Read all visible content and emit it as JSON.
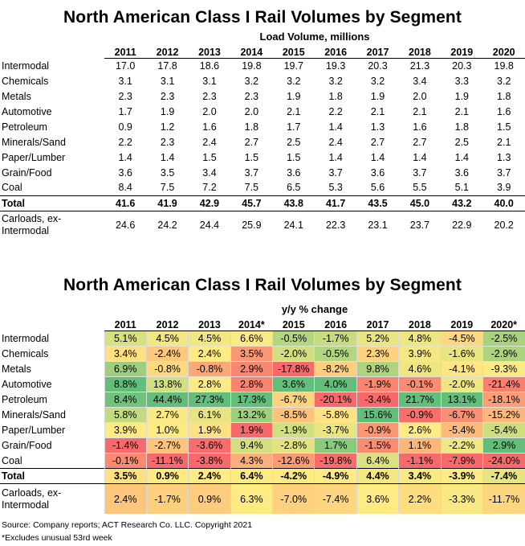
{
  "volume_section": {
    "title": "North American Class I Rail Volumes by Segment",
    "subtitle": "Load Volume, millions",
    "years": [
      "2011",
      "2012",
      "2013",
      "2014",
      "2015",
      "2016",
      "2017",
      "2018",
      "2019",
      "2020"
    ],
    "rows": [
      {
        "label": "Intermodal",
        "values": [
          "17.0",
          "17.8",
          "18.6",
          "19.8",
          "19.7",
          "19.3",
          "20.3",
          "21.3",
          "20.3",
          "19.8"
        ]
      },
      {
        "label": "Chemicals",
        "values": [
          "3.1",
          "3.1",
          "3.1",
          "3.2",
          "3.2",
          "3.2",
          "3.2",
          "3.4",
          "3.3",
          "3.2"
        ]
      },
      {
        "label": "Metals",
        "values": [
          "2.3",
          "2.3",
          "2.3",
          "2.3",
          "1.9",
          "1.8",
          "1.9",
          "2.0",
          "1.9",
          "1.8"
        ]
      },
      {
        "label": "Automotive",
        "values": [
          "1.7",
          "1.9",
          "2.0",
          "2.0",
          "2.1",
          "2.2",
          "2.1",
          "2.1",
          "2.1",
          "1.6"
        ]
      },
      {
        "label": "Petroleum",
        "values": [
          "0.9",
          "1.2",
          "1.6",
          "1.8",
          "1.7",
          "1.4",
          "1.3",
          "1.6",
          "1.8",
          "1.5"
        ]
      },
      {
        "label": "Minerals/Sand",
        "values": [
          "2.2",
          "2.3",
          "2.4",
          "2.7",
          "2.5",
          "2.4",
          "2.7",
          "2.7",
          "2.5",
          "2.1"
        ]
      },
      {
        "label": "Paper/Lumber",
        "values": [
          "1.4",
          "1.4",
          "1.5",
          "1.5",
          "1.5",
          "1.4",
          "1.4",
          "1.4",
          "1.4",
          "1.3"
        ]
      },
      {
        "label": "Grain/Food",
        "values": [
          "3.6",
          "3.5",
          "3.4",
          "3.7",
          "3.6",
          "3.7",
          "3.6",
          "3.7",
          "3.6",
          "3.7"
        ]
      },
      {
        "label": "Coal",
        "values": [
          "8.4",
          "7.5",
          "7.2",
          "7.5",
          "6.5",
          "5.3",
          "5.6",
          "5.5",
          "5.1",
          "3.9"
        ]
      }
    ],
    "total": {
      "label": "Total",
      "values": [
        "41.6",
        "41.9",
        "42.9",
        "45.7",
        "43.8",
        "41.7",
        "43.5",
        "45.0",
        "43.2",
        "40.0"
      ]
    },
    "carloads": {
      "label": "Carloads, ex-Intermodal",
      "values": [
        "24.6",
        "24.2",
        "24.4",
        "25.9",
        "24.1",
        "22.3",
        "23.1",
        "23.7",
        "22.9",
        "20.2"
      ]
    }
  },
  "change_section": {
    "title": "North American Class I Rail Volumes by Segment",
    "subtitle": "y/y % change",
    "years": [
      "2011",
      "2012",
      "2013",
      "2014*",
      "2015",
      "2016",
      "2017",
      "2018",
      "2019",
      "2020*"
    ],
    "rows": [
      {
        "label": "Intermodal",
        "values": [
          "5.1%",
          "4.5%",
          "4.5%",
          "6.6%",
          "-0.5%",
          "-1.7%",
          "5.2%",
          "4.8%",
          "-4.5%",
          "-2.5%"
        ]
      },
      {
        "label": "Chemicals",
        "values": [
          "3.4%",
          "-2.4%",
          "2.4%",
          "3.5%",
          "-2.0%",
          "-0.5%",
          "2.3%",
          "3.9%",
          "-1.6%",
          "-2.9%"
        ]
      },
      {
        "label": "Metals",
        "values": [
          "6.9%",
          "-0.8%",
          "-0.8%",
          "2.9%",
          "-17.8%",
          "-8.2%",
          "9.8%",
          "4.6%",
          "-4.1%",
          "-9.3%"
        ]
      },
      {
        "label": "Automotive",
        "values": [
          "8.8%",
          "13.8%",
          "2.8%",
          "2.8%",
          "3.6%",
          "4.0%",
          "-1.9%",
          "-0.1%",
          "-2.0%",
          "-21.4%"
        ]
      },
      {
        "label": "Petroleum",
        "values": [
          "8.4%",
          "44.4%",
          "27.3%",
          "17.3%",
          "-6.7%",
          "-20.1%",
          "-3.4%",
          "21.7%",
          "13.1%",
          "-18.1%"
        ]
      },
      {
        "label": "Minerals/Sand",
        "values": [
          "5.8%",
          "2.7%",
          "6.1%",
          "13.2%",
          "-8.5%",
          "-5.8%",
          "15.6%",
          "-0.9%",
          "-6.7%",
          "-15.2%"
        ]
      },
      {
        "label": "Paper/Lumber",
        "values": [
          "3.9%",
          "1.0%",
          "1.9%",
          "1.9%",
          "-1.9%",
          "-3.7%",
          "-0.9%",
          "2.6%",
          "-5.4%",
          "-5.4%"
        ]
      },
      {
        "label": "Grain/Food",
        "values": [
          "-1.4%",
          "-2.7%",
          "-3.6%",
          "9.4%",
          "-2.8%",
          "1.7%",
          "-1.5%",
          "1.1%",
          "-2.2%",
          "2.9%"
        ]
      },
      {
        "label": "Coal",
        "values": [
          "-0.1%",
          "-11.1%",
          "-3.8%",
          "4.3%",
          "-12.6%",
          "-19.8%",
          "6.4%",
          "-1.1%",
          "-7.9%",
          "-24.0%"
        ]
      }
    ],
    "total": {
      "label": "Total",
      "values": [
        "3.5%",
        "0.9%",
        "2.4%",
        "6.4%",
        "-4.2%",
        "-4.9%",
        "4.4%",
        "3.4%",
        "-3.9%",
        "-7.4%"
      ]
    },
    "carloads": {
      "label": "Carloads, ex-Intermodal",
      "values": [
        "2.4%",
        "-1.7%",
        "0.9%",
        "6.3%",
        "-7.0%",
        "-7.4%",
        "3.6%",
        "2.2%",
        "-3.3%",
        "-11.7%"
      ]
    },
    "heat_colors": {
      "high": "#63be7b",
      "mid": "#ffeb84",
      "low": "#f8696b"
    }
  },
  "footnotes": {
    "source": "Source: Company reports; ACT Research Co. LLC. Copyright 2021",
    "note": "*Excludes unusual 53rd week"
  }
}
